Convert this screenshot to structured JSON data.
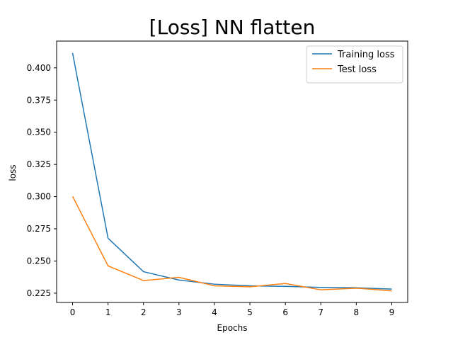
{
  "chart_data": {
    "type": "line",
    "title": "[Loss] NN flatten",
    "xlabel": "Epochs",
    "ylabel": "loss",
    "x": [
      0,
      1,
      2,
      3,
      4,
      5,
      6,
      7,
      8,
      9
    ],
    "xlim": [
      -0.45,
      9.45
    ],
    "ylim": [
      0.2178,
      0.4208
    ],
    "xticks": [
      0,
      1,
      2,
      3,
      4,
      5,
      6,
      7,
      8,
      9
    ],
    "yticks": [
      0.225,
      0.25,
      0.275,
      0.3,
      0.325,
      0.35,
      0.375,
      0.4
    ],
    "ytick_labels": [
      "0.225",
      "0.250",
      "0.275",
      "0.300",
      "0.325",
      "0.350",
      "0.375",
      "0.400"
    ],
    "grid": false,
    "legend_position": "top-right",
    "series": [
      {
        "name": "Training loss",
        "color": "#1f77b4",
        "values": [
          0.4115,
          0.2677,
          0.2417,
          0.2352,
          0.232,
          0.2307,
          0.2303,
          0.2295,
          0.2292,
          0.2282
        ]
      },
      {
        "name": "Test loss",
        "color": "#ff7f0e",
        "values": [
          0.3002,
          0.2462,
          0.2348,
          0.2373,
          0.2307,
          0.23,
          0.2325,
          0.2276,
          0.2289,
          0.2268
        ]
      }
    ]
  }
}
